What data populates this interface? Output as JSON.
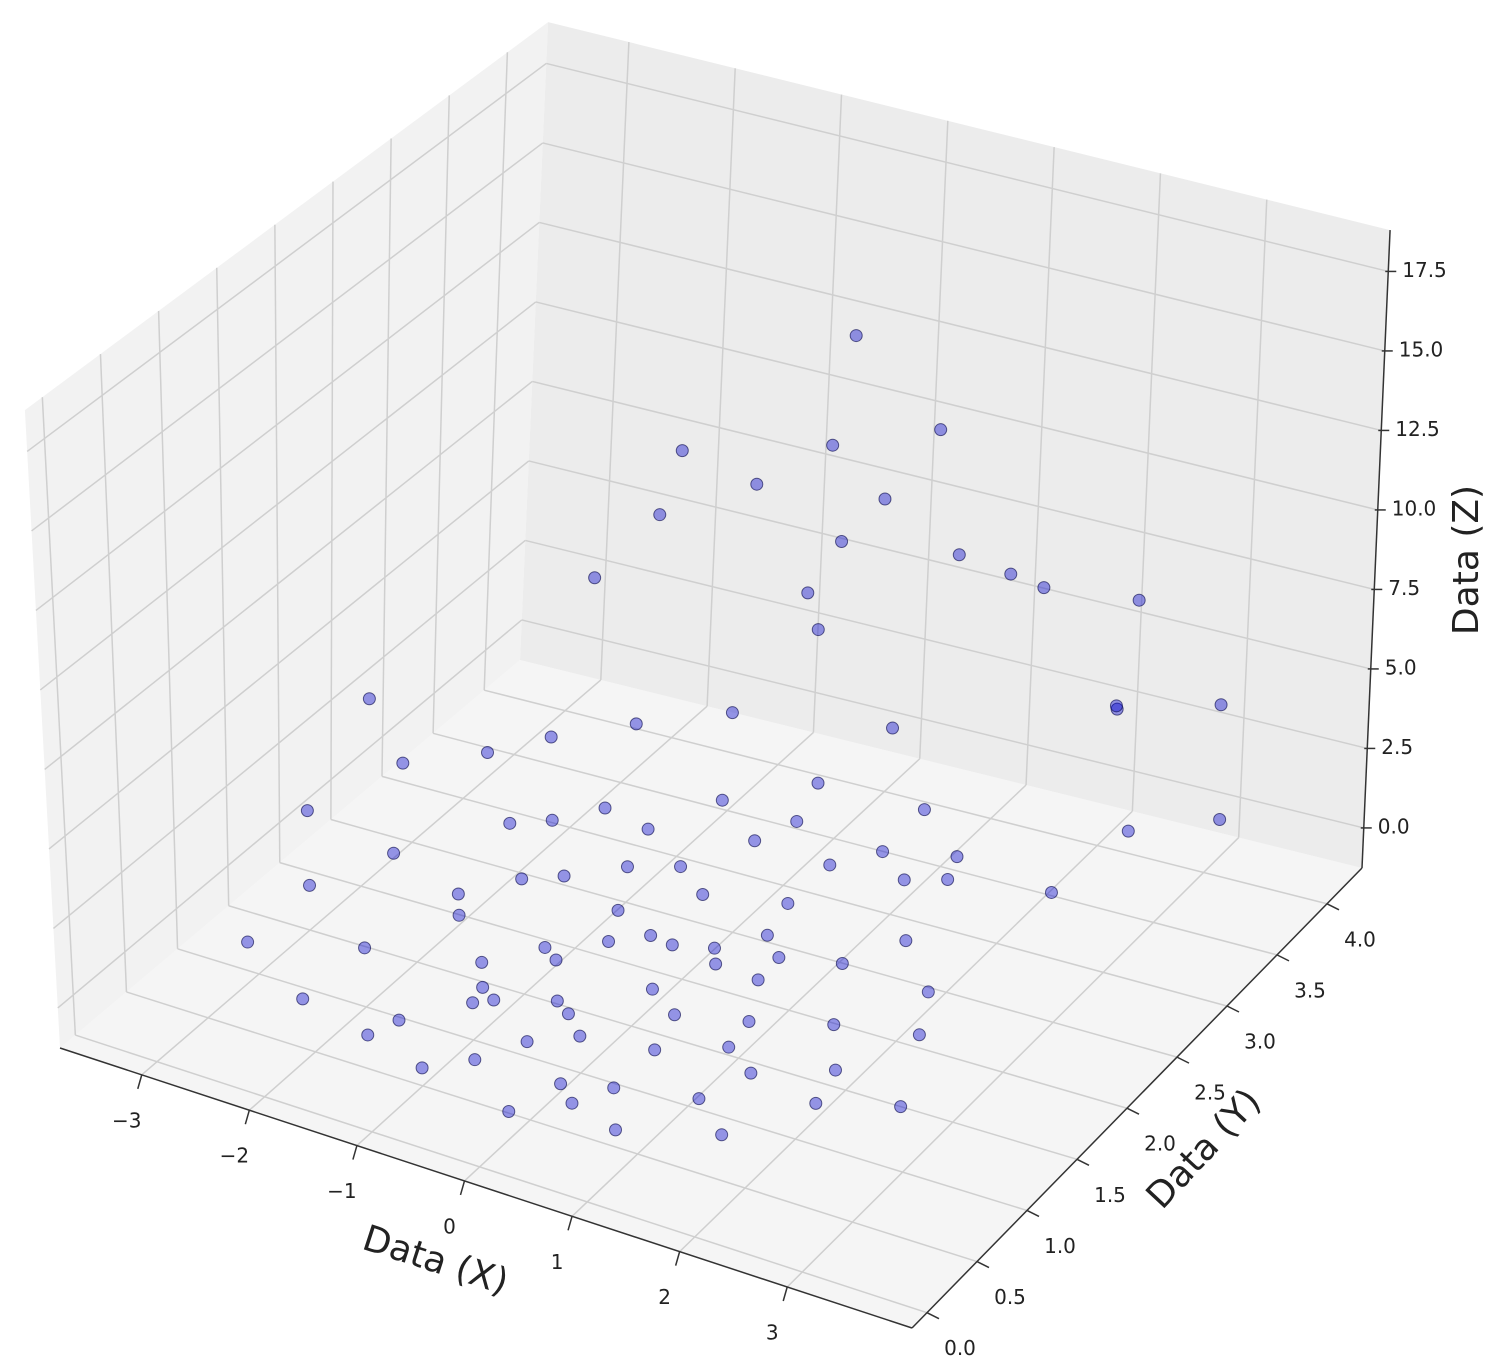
{
  "chart_data": {
    "type": "scatter3d",
    "xlabel": "Data (X)",
    "ylabel": "Data (Y)",
    "zlabel": "Data (Z)",
    "color": "#0000cc",
    "grid": true,
    "xlim": [
      -3.76,
      4.16
    ],
    "ylim": [
      -0.15,
      4.35
    ],
    "zlim": [
      -1.26,
      18.8
    ],
    "xticks": [
      {
        "value": -3,
        "label": "−3"
      },
      {
        "value": -2,
        "label": "−2"
      },
      {
        "value": -1,
        "label": "−1"
      },
      0,
      1,
      2,
      3
    ],
    "yticks": [
      {
        "value": 0,
        "label": "0.0"
      },
      0.5,
      {
        "value": 1,
        "label": "1.0"
      },
      1.5,
      {
        "value": 2,
        "label": "2.0"
      },
      2.5,
      {
        "value": 3,
        "label": "3.0"
      },
      3.5,
      {
        "value": 4,
        "label": "4.0"
      }
    ],
    "zticks": [
      {
        "value": 0,
        "label": "0.0"
      },
      2.5,
      {
        "value": 5,
        "label": "5.0"
      },
      7.5,
      {
        "value": 10,
        "label": "10.0"
      },
      12.5,
      {
        "value": 15,
        "label": "15.0"
      },
      17.5
    ],
    "x": [
      -0.2,
      0.5,
      -1.1,
      0.9,
      -0.6,
      1.3,
      -1.7,
      0.1,
      0.3,
      -0.8,
      1.6,
      -0.3,
      0.7,
      -1.4,
      0.0,
      1.1,
      -2.0,
      0.4,
      -0.5,
      1.9,
      -1.0,
      0.6,
      -0.1,
      2.2,
      -2.4,
      0.8,
      -0.7,
      1.4,
      -1.3,
      0.2,
      -0.4,
      1.0,
      -1.8,
      0.5,
      -0.9,
      1.7,
      -2.8,
      0.3,
      -0.2,
      1.2,
      -1.5,
      2.5,
      -0.6,
      0.9,
      -1.2,
      0.0,
      -2.2,
      1.5,
      -0.3,
      2.0,
      -3.4,
      2.6,
      0.4,
      -1.0,
      0.8,
      1.5,
      2.5,
      3.2,
      -2.3,
      -0.5,
      1.9,
      -1.6,
      0.2,
      2.9,
      -0.9,
      1.2,
      3.5,
      -1.9,
      0.6,
      2.3,
      -2.9,
      1.8,
      -0.8,
      3.0,
      2.8,
      -2.6,
      0.1,
      1.0,
      -1.4,
      2.4,
      -0.4,
      0.7,
      -1.1,
      1.3,
      -0.2,
      0.5,
      -2.1,
      1.6,
      -0.7,
      2.1,
      -1.3,
      0.3,
      0.9,
      -0.5,
      1.4,
      -1.7,
      3.6,
      2.7,
      -0.1,
      1.1
    ],
    "y": [
      1.5,
      1.8,
      1.2,
      1.4,
      2.1,
      1.1,
      1.6,
      0.9,
      2.4,
      0.8,
      1.9,
      1.1,
      0.6,
      2.2,
      1.7,
      2.3,
      1.0,
      1.3,
      0.5,
      1.5,
      1.9,
      2.7,
      2.5,
      1.2,
      1.7,
      0.9,
      1.4,
      0.7,
      0.6,
      2.0,
      2.9,
      3.0,
      2.6,
      0.4,
      1.0,
      2.4,
      1.3,
      1.6,
      0.7,
      1.7,
      1.4,
      1.8,
      2.3,
      2.1,
      2.8,
      3.3,
      2.4,
      2.8,
      3.5,
      2.6,
      1.9,
      2.9,
      3.2,
      3.0,
      3.6,
      3.1,
      3.8,
      3.9,
      1.4,
      3.9,
      3.5,
      3.4,
      3.7,
      3.2,
      3.6,
      3.9,
      3.6,
      3.1,
      2.9,
      2.2,
      0.8,
      0.5,
      0.3,
      1.0,
      1.4,
      2.0,
      0.2,
      0.3,
      0.4,
      0.8,
      1.8,
      1.2,
      2.4,
      1.3,
      2.2,
      2.6,
      0.5,
      1.0,
      0.9,
      2.0,
      1.8,
      0.5,
      1.9,
      1.3,
      2.5,
      2.1,
      2.6,
      3.4,
      1.0,
      1.6
    ],
    "z": [
      1.2,
      0.8,
      0.5,
      1.9,
      1.4,
      0.6,
      0.9,
      0.3,
      2.2,
      0.7,
      1.1,
      0.4,
      0.2,
      1.8,
      1.0,
      2.5,
      0.6,
      0.9,
      0.1,
      0.7,
      1.3,
      3.4,
      2.8,
      0.5,
      1.2,
      0.6,
      0.8,
      0.3,
      0.2,
      1.6,
      4.1,
      4.6,
      2.9,
      0.1,
      0.5,
      2.3,
      0.9,
      1.3,
      0.4,
      1.5,
      1.0,
      1.4,
      2.0,
      1.7,
      3.3,
      5.9,
      2.6,
      3.1,
      6.2,
      2.7,
      1.0,
      1.2,
      15.8,
      11.5,
      12.0,
      10.2,
      7.5,
      4.5,
      7.0,
      9.5,
      8.3,
      7.8,
      9.0,
      6.3,
      8.8,
      6.9,
      2.1,
      6.4,
      10.4,
      3.5,
      0.4,
      0.2,
      0.1,
      0.8,
      1.6,
      3.0,
      0.0,
      0.1,
      0.2,
      0.9,
      1.1,
      0.7,
      1.9,
      0.8,
      1.5,
      2.4,
      0.3,
      0.4,
      0.6,
      2.0,
      1.2,
      0.2,
      1.3,
      0.9,
      2.6,
      1.7,
      5.0,
      5.6,
      0.5,
      1.0
    ]
  }
}
